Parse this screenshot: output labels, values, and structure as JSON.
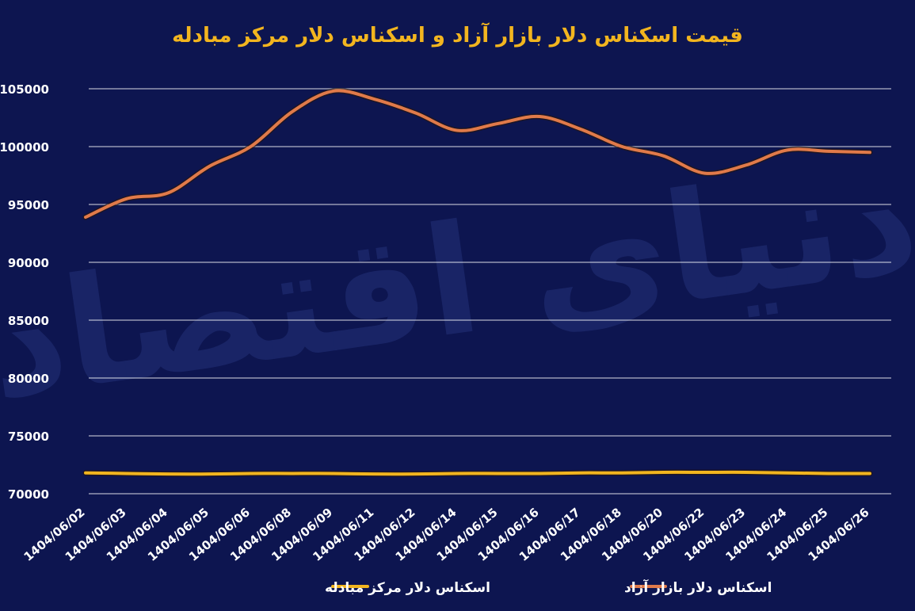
{
  "chart_data": {
    "type": "line",
    "title": "قیمت اسکناس دلار بازار آزاد و اسکناس دلار مرکز مبادله",
    "xlabel": "",
    "ylabel": "",
    "ylim": [
      70000,
      105000
    ],
    "yticks": [
      70000,
      75000,
      80000,
      85000,
      90000,
      95000,
      100000,
      105000
    ],
    "ytick_labels": [
      "70000",
      "75000",
      "80000",
      "85000",
      "90000",
      "95000",
      "100000",
      "105000"
    ],
    "categories": [
      "1404/06/02",
      "1404/06/03",
      "1404/06/04",
      "1404/06/05",
      "1404/06/06",
      "1404/06/08",
      "1404/06/09",
      "1404/06/11",
      "1404/06/12",
      "1404/06/14",
      "1404/06/15",
      "1404/06/16",
      "1404/06/17",
      "1404/06/18",
      "1404/06/20",
      "1404/06/22",
      "1404/06/23",
      "1404/06/24",
      "1404/06/25",
      "1404/06/26"
    ],
    "series": [
      {
        "name": "اسکناس دلار بازار آزاد",
        "color": "#e07a4a",
        "values": [
          93900,
          95500,
          96000,
          98300,
          100000,
          103000,
          104800,
          104100,
          102900,
          101400,
          102000,
          102600,
          101500,
          100000,
          99200,
          97700,
          98400,
          99700,
          99600,
          99500
        ]
      },
      {
        "name": "اسکناس دلار مرکز مبادله",
        "color": "#f2b51f",
        "values": [
          71800,
          71750,
          71700,
          71700,
          71750,
          71750,
          71750,
          71700,
          71700,
          71750,
          71750,
          71750,
          71800,
          71800,
          71850,
          71850,
          71850,
          71800,
          71750,
          71750
        ]
      }
    ],
    "legend_position": "bottom",
    "grid": true,
    "watermark": "دنیای اقتصاد"
  }
}
